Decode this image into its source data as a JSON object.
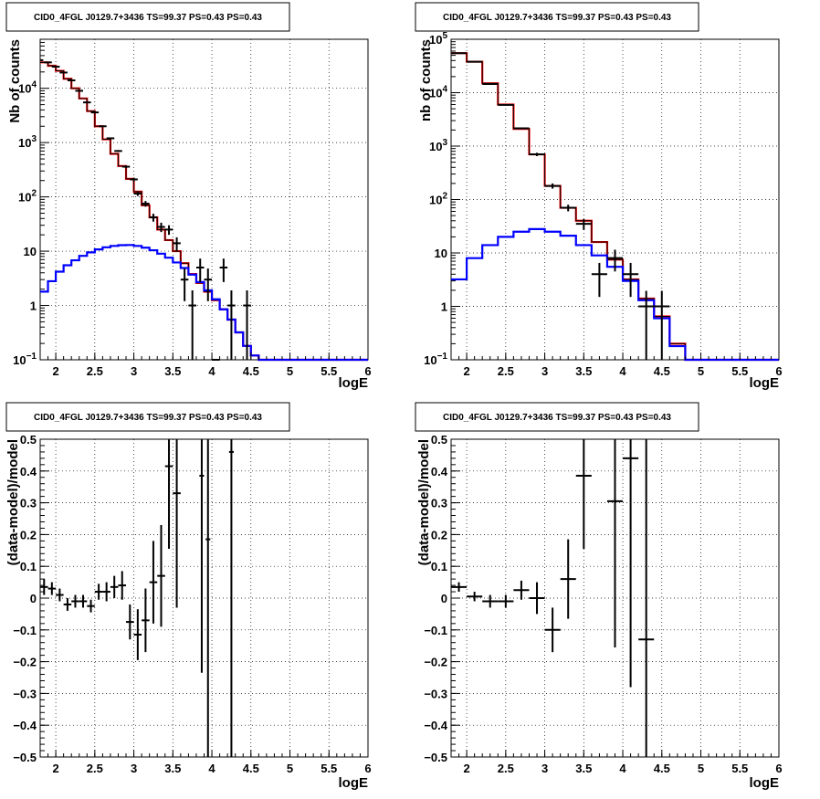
{
  "page_title": "CID0_4FGL J0129.7+3436 TS=99.37 PS=0.43 PS=0.43",
  "chart_data": [
    {
      "id": "top-left",
      "type": "line",
      "title": "CID0_4FGL J0129.7+3436 TS=99.37 PS=0.43 PS=0.43",
      "xlabel": "logE",
      "ylabel": "Nb of counts",
      "log_y": true,
      "xlim": [
        1.8,
        6.0
      ],
      "ylim": [
        0.1,
        80000
      ],
      "grid": true,
      "x_ticks": [
        "2",
        "2.5",
        "3",
        "3.5",
        "4",
        "4.5",
        "5",
        "5.5",
        "6"
      ],
      "y_ticks": [
        "10^-1",
        "1",
        "10",
        "10^2",
        "10^3",
        "10^4"
      ],
      "series": [
        {
          "color": "#ff0000",
          "style": "step",
          "bin_edges": [
            1.8,
            1.9,
            2.0,
            2.1,
            2.2,
            2.3,
            2.4,
            2.5,
            2.6,
            2.7,
            2.8,
            2.9,
            3.0,
            3.1,
            3.2,
            3.3,
            3.4,
            3.5,
            3.6,
            3.7,
            3.8,
            3.9,
            4.0,
            4.1,
            4.2,
            4.3,
            4.4,
            4.5,
            4.6,
            4.7,
            4.8,
            4.9,
            5.0,
            5.1,
            5.2,
            5.3,
            5.4,
            5.5,
            5.6,
            5.7,
            5.8,
            5.9,
            6.0
          ],
          "values": [
            30000,
            26000,
            21000,
            15000,
            10000,
            6500,
            3800,
            2000,
            1150,
            620,
            370,
            215,
            125,
            70,
            42,
            25,
            16,
            10,
            6.0,
            3.8,
            2.6,
            1.8,
            1.25,
            0.85,
            0.55,
            0.32,
            0.18,
            0.12,
            0.1,
            0.1,
            0.1,
            0.1,
            0.1,
            0.1,
            0.1,
            0.1,
            0.1,
            0.1,
            0.1,
            0.1,
            0.1,
            0.1
          ]
        },
        {
          "color": "#000000",
          "style": "step",
          "bin_edges": [
            1.8,
            1.9,
            2.0,
            2.1,
            2.2,
            2.3,
            2.4,
            2.5,
            2.6,
            2.7,
            2.8,
            2.9,
            3.0,
            3.1,
            3.2,
            3.3,
            3.4,
            3.5,
            3.6,
            3.7,
            3.8,
            3.9,
            4.0,
            4.1,
            4.2,
            4.3,
            4.4,
            4.5,
            4.6,
            4.7,
            4.8,
            4.9,
            5.0,
            5.1,
            5.2,
            5.3,
            5.4,
            5.5,
            5.6,
            5.7,
            5.8,
            5.9,
            6.0
          ],
          "values": [
            30000,
            26000,
            21000,
            15000,
            10000,
            6500,
            3800,
            2000,
            1150,
            620,
            370,
            215,
            125,
            70,
            42,
            25,
            16,
            10,
            6.0,
            3.8,
            2.6,
            1.8,
            1.25,
            0.85,
            0.55,
            0.32,
            0.18,
            0.12,
            0.1,
            0.1,
            0.1,
            0.1,
            0.1,
            0.1,
            0.1,
            0.1,
            0.1,
            0.1,
            0.1,
            0.1,
            0.1,
            0.1
          ]
        },
        {
          "color": "#0000ff",
          "style": "step",
          "bin_edges": [
            1.8,
            1.9,
            2.0,
            2.1,
            2.2,
            2.3,
            2.4,
            2.5,
            2.6,
            2.7,
            2.8,
            2.9,
            3.0,
            3.1,
            3.2,
            3.3,
            3.4,
            3.5,
            3.6,
            3.7,
            3.8,
            3.9,
            4.0,
            4.1,
            4.2,
            4.3,
            4.4,
            4.5,
            4.6,
            4.7,
            4.8,
            4.9,
            5.0,
            5.1,
            5.2,
            5.3,
            5.4,
            5.5,
            5.6,
            5.7,
            5.8,
            5.9,
            6.0
          ],
          "values": [
            1.8,
            2.8,
            4.2,
            5.5,
            6.8,
            8.2,
            9.5,
            10.8,
            11.8,
            12.5,
            12.9,
            13.0,
            12.5,
            11.6,
            10.4,
            9.0,
            7.6,
            6.2,
            4.9,
            3.7,
            2.7,
            1.9,
            1.3,
            0.85,
            0.55,
            0.32,
            0.18,
            0.12,
            0.1,
            0.1,
            0.1,
            0.1,
            0.1,
            0.1,
            0.1,
            0.1,
            0.1,
            0.1,
            0.1,
            0.1,
            0.1,
            0.1
          ]
        }
      ],
      "points": [
        {
          "x": 1.82,
          "y": 33000,
          "xerr": 0.02,
          "yerr": 300
        },
        {
          "x": 1.9,
          "y": 30000,
          "xerr": 0.05,
          "yerr": 300
        },
        {
          "x": 2.0,
          "y": 25000,
          "xerr": 0.05,
          "yerr": 250
        },
        {
          "x": 2.1,
          "y": 19500,
          "xerr": 0.05,
          "yerr": 200
        },
        {
          "x": 2.2,
          "y": 14000,
          "xerr": 0.05,
          "yerr": 150
        },
        {
          "x": 2.3,
          "y": 9000,
          "xerr": 0.05,
          "yerr": 100
        },
        {
          "x": 2.4,
          "y": 5500,
          "xerr": 0.05,
          "yerr": 80
        },
        {
          "x": 2.5,
          "y": 3600,
          "xerr": 0.05,
          "yerr": 60
        },
        {
          "x": 2.6,
          "y": 2000,
          "xerr": 0.05,
          "yerr": 45
        },
        {
          "x": 2.7,
          "y": 1200,
          "xerr": 0.05,
          "yerr": 35
        },
        {
          "x": 2.8,
          "y": 700,
          "xerr": 0.05,
          "yerr": 26
        },
        {
          "x": 2.9,
          "y": 360,
          "xerr": 0.05,
          "yerr": 19
        },
        {
          "x": 3.0,
          "y": 210,
          "xerr": 0.05,
          "yerr": 15
        },
        {
          "x": 3.05,
          "y": 115,
          "xerr": 0.05,
          "yerr": 11
        },
        {
          "x": 3.15,
          "y": 75,
          "xerr": 0.05,
          "yerr": 9
        },
        {
          "x": 3.25,
          "y": 42,
          "xerr": 0.05,
          "yerr": 7
        },
        {
          "x": 3.35,
          "y": 28,
          "xerr": 0.05,
          "yerr": 5.5
        },
        {
          "x": 3.45,
          "y": 25,
          "xerr": 0.05,
          "yerr": 5
        },
        {
          "x": 3.55,
          "y": 14,
          "xerr": 0.05,
          "yerr": 4
        },
        {
          "x": 3.65,
          "y": 3,
          "xerr": 0.05,
          "yerr": 1.8
        },
        {
          "x": 3.75,
          "y": 1,
          "xerr": 0.05,
          "yerr": 0.9
        },
        {
          "x": 3.85,
          "y": 5,
          "xerr": 0.05,
          "yerr": 2.3
        },
        {
          "x": 3.95,
          "y": 3,
          "xerr": 0.05,
          "yerr": 1.8
        },
        {
          "x": 4.05,
          "y": 0,
          "xerr": 0.05,
          "yerr": 0
        },
        {
          "x": 4.15,
          "y": 5,
          "xerr": 0.05,
          "yerr": 2.3
        },
        {
          "x": 4.25,
          "y": 1,
          "xerr": 0.05,
          "yerr": 0.9
        },
        {
          "x": 4.45,
          "y": 1,
          "xerr": 0.05,
          "yerr": 0.9
        }
      ]
    },
    {
      "id": "top-right",
      "type": "line",
      "title": "CID0_4FGL J0129.7+3436 TS=99.37 PS=0.43 PS=0.43",
      "xlabel": "logE",
      "ylabel": "nb of counts",
      "log_y": true,
      "xlim": [
        1.8,
        6.0
      ],
      "ylim": [
        0.1,
        100000
      ],
      "grid": true,
      "x_ticks": [
        "2",
        "2.5",
        "3",
        "3.5",
        "4",
        "4.5",
        "5",
        "5.5",
        "6"
      ],
      "y_ticks": [
        "10^-1",
        "1",
        "10",
        "10^2",
        "10^3",
        "10^4",
        "10^5"
      ],
      "series": [
        {
          "color": "#ff0000",
          "style": "step",
          "bin_edges": [
            1.8,
            2.0,
            2.2,
            2.4,
            2.6,
            2.8,
            3.0,
            3.2,
            3.4,
            3.6,
            3.8,
            4.0,
            4.2,
            4.4,
            4.6,
            4.8,
            5.0,
            5.2,
            5.4,
            5.6,
            5.8,
            6.0
          ],
          "values": [
            55000,
            38000,
            15000,
            6000,
            2100,
            700,
            180,
            70,
            40,
            16,
            7.5,
            3.2,
            1.4,
            0.65,
            0.2,
            0.1,
            0.1,
            0.1,
            0.1,
            0.1,
            0.1
          ]
        },
        {
          "color": "#000000",
          "style": "step",
          "bin_edges": [
            1.8,
            2.0,
            2.2,
            2.4,
            2.6,
            2.8,
            3.0,
            3.2,
            3.4,
            3.6,
            3.8,
            4.0,
            4.2,
            4.4,
            4.6,
            4.8,
            5.0,
            5.2,
            5.4,
            5.6,
            5.8,
            6.0
          ],
          "values": [
            55000,
            38000,
            15000,
            6000,
            2100,
            700,
            180,
            70,
            40,
            16,
            7.5,
            3.2,
            1.4,
            0.65,
            0.2,
            0.1,
            0.1,
            0.1,
            0.1,
            0.1,
            0.1
          ]
        },
        {
          "color": "#0000ff",
          "style": "step",
          "bin_edges": [
            1.8,
            2.0,
            2.2,
            2.4,
            2.6,
            2.8,
            3.0,
            3.2,
            3.4,
            3.6,
            3.8,
            4.0,
            4.2,
            4.4,
            4.6,
            4.8,
            5.0,
            5.2,
            5.4,
            5.6,
            5.8,
            6.0
          ],
          "values": [
            3.2,
            8.0,
            14,
            20,
            25,
            28,
            25,
            21,
            14,
            9,
            5.5,
            3.0,
            1.3,
            0.6,
            0.18,
            0.1,
            0.1,
            0.1,
            0.1,
            0.1,
            0.1
          ]
        }
      ],
      "points": [
        {
          "x": 1.9,
          "y": 55000,
          "xerr": 0.1,
          "yerr": 800
        },
        {
          "x": 2.1,
          "y": 38000,
          "xerr": 0.1,
          "yerr": 600
        },
        {
          "x": 2.3,
          "y": 14500,
          "xerr": 0.1,
          "yerr": 300
        },
        {
          "x": 2.5,
          "y": 5900,
          "xerr": 0.1,
          "yerr": 150
        },
        {
          "x": 2.7,
          "y": 2150,
          "xerr": 0.1,
          "yerr": 80
        },
        {
          "x": 2.9,
          "y": 700,
          "xerr": 0.1,
          "yerr": 50
        },
        {
          "x": 3.1,
          "y": 180,
          "xerr": 0.1,
          "yerr": 20
        },
        {
          "x": 3.3,
          "y": 70,
          "xerr": 0.1,
          "yerr": 10
        },
        {
          "x": 3.5,
          "y": 35,
          "xerr": 0.1,
          "yerr": 8
        },
        {
          "x": 3.7,
          "y": 4,
          "xerr": 0.1,
          "yerr": 2.5
        },
        {
          "x": 3.9,
          "y": 8,
          "xerr": 0.1,
          "yerr": 3.5
        },
        {
          "x": 4.1,
          "y": 4,
          "xerr": 0.1,
          "yerr": 2.5
        },
        {
          "x": 4.3,
          "y": 1,
          "xerr": 0.1,
          "yerr": 0.95
        },
        {
          "x": 4.5,
          "y": 1,
          "xerr": 0.1,
          "yerr": 0.95
        }
      ]
    },
    {
      "id": "bottom-left",
      "type": "scatter",
      "title": "CID0_4FGL J0129.7+3436 TS=99.37 PS=0.43 PS=0.43",
      "xlabel": "logE",
      "ylabel": "(data-model)/model",
      "xlim": [
        1.8,
        6.0
      ],
      "ylim": [
        -0.5,
        0.5
      ],
      "grid": true,
      "x_ticks": [
        "2",
        "2.5",
        "3",
        "3.5",
        "4",
        "4.5",
        "5",
        "5.5",
        "6"
      ],
      "y_ticks": [
        "-0.5",
        "-0.4",
        "-0.3",
        "-0.2",
        "-0.1",
        "0",
        "0.1",
        "0.2",
        "0.3",
        "0.4",
        "0.5"
      ],
      "points": [
        {
          "x": 1.85,
          "y": 0.035,
          "xerr": 0.05,
          "yerr": 0.025
        },
        {
          "x": 1.95,
          "y": 0.03,
          "xerr": 0.05,
          "yerr": 0.02
        },
        {
          "x": 2.05,
          "y": 0.01,
          "xerr": 0.05,
          "yerr": 0.02
        },
        {
          "x": 2.15,
          "y": -0.02,
          "xerr": 0.05,
          "yerr": 0.02
        },
        {
          "x": 2.25,
          "y": -0.01,
          "xerr": 0.05,
          "yerr": 0.02
        },
        {
          "x": 2.35,
          "y": -0.01,
          "xerr": 0.05,
          "yerr": 0.02
        },
        {
          "x": 2.45,
          "y": -0.025,
          "xerr": 0.05,
          "yerr": 0.02
        },
        {
          "x": 2.55,
          "y": 0.02,
          "xerr": 0.05,
          "yerr": 0.025
        },
        {
          "x": 2.65,
          "y": 0.02,
          "xerr": 0.05,
          "yerr": 0.03
        },
        {
          "x": 2.75,
          "y": 0.035,
          "xerr": 0.05,
          "yerr": 0.035
        },
        {
          "x": 2.85,
          "y": 0.04,
          "xerr": 0.05,
          "yerr": 0.045
        },
        {
          "x": 2.95,
          "y": -0.075,
          "xerr": 0.05,
          "yerr": 0.055
        },
        {
          "x": 3.05,
          "y": -0.115,
          "xerr": 0.05,
          "yerr": 0.08
        },
        {
          "x": 3.15,
          "y": -0.07,
          "xerr": 0.05,
          "yerr": 0.1
        },
        {
          "x": 3.25,
          "y": 0.05,
          "xerr": 0.05,
          "yerr": 0.13
        },
        {
          "x": 3.35,
          "y": 0.07,
          "xerr": 0.05,
          "yerr": 0.16
        },
        {
          "x": 3.45,
          "y": 0.415,
          "xerr": 0.05,
          "yerr": 0.26
        },
        {
          "x": 3.55,
          "y": 0.33,
          "xerr": 0.05,
          "yerr": 0.36
        },
        {
          "x": 3.87,
          "y": 0.385,
          "xerr": 0.03,
          "yerr": 0.62
        },
        {
          "x": 3.95,
          "y": 0.185,
          "xerr": 0.03,
          "yerr": 0.9
        },
        {
          "x": 4.25,
          "y": 0.46,
          "xerr": 0.03,
          "yerr": 1.1
        }
      ]
    },
    {
      "id": "bottom-right",
      "type": "scatter",
      "title": "CID0_4FGL J0129.7+3436 TS=99.37 PS=0.43 PS=0.43",
      "xlabel": "logE",
      "ylabel": "(data-model)/model",
      "xlim": [
        1.8,
        6.0
      ],
      "ylim": [
        -0.5,
        0.5
      ],
      "grid": true,
      "x_ticks": [
        "2",
        "2.5",
        "3",
        "3.5",
        "4",
        "4.5",
        "5",
        "5.5",
        "6"
      ],
      "y_ticks": [
        "-0.5",
        "-0.4",
        "-0.3",
        "-0.2",
        "-0.1",
        "0",
        "0.1",
        "0.2",
        "0.3",
        "0.4",
        "0.5"
      ],
      "points": [
        {
          "x": 1.9,
          "y": 0.035,
          "xerr": 0.1,
          "yerr": 0.015
        },
        {
          "x": 2.1,
          "y": 0.005,
          "xerr": 0.1,
          "yerr": 0.015
        },
        {
          "x": 2.3,
          "y": -0.01,
          "xerr": 0.1,
          "yerr": 0.02
        },
        {
          "x": 2.5,
          "y": -0.01,
          "xerr": 0.1,
          "yerr": 0.02
        },
        {
          "x": 2.7,
          "y": 0.025,
          "xerr": 0.1,
          "yerr": 0.03
        },
        {
          "x": 2.9,
          "y": 0.0,
          "xerr": 0.1,
          "yerr": 0.05
        },
        {
          "x": 3.1,
          "y": -0.1,
          "xerr": 0.1,
          "yerr": 0.07
        },
        {
          "x": 3.3,
          "y": 0.06,
          "xerr": 0.1,
          "yerr": 0.125
        },
        {
          "x": 3.5,
          "y": 0.385,
          "xerr": 0.1,
          "yerr": 0.23
        },
        {
          "x": 3.9,
          "y": 0.305,
          "xerr": 0.1,
          "yerr": 0.46
        },
        {
          "x": 4.1,
          "y": 0.44,
          "xerr": 0.1,
          "yerr": 0.72
        },
        {
          "x": 4.3,
          "y": -0.13,
          "xerr": 0.1,
          "yerr": 0.95
        }
      ]
    }
  ]
}
